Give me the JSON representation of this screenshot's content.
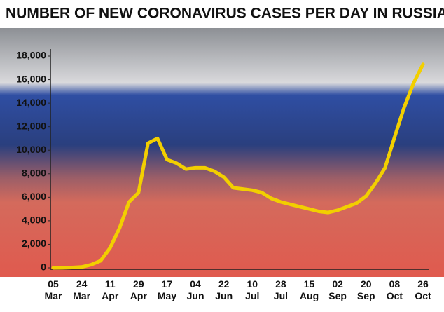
{
  "chart_data": {
    "type": "line",
    "title": "NUMBER OF NEW CORONAVIRUS CASES PER DAY IN RUSSIA",
    "categories": [
      "05 Mar",
      null,
      null,
      "24 Mar",
      null,
      null,
      "11 Apr",
      null,
      null,
      "29 Apr",
      null,
      null,
      "17 May",
      null,
      null,
      "04 Jun",
      null,
      null,
      "22 Jun",
      null,
      null,
      "10 Jul",
      null,
      null,
      "28 Jul",
      null,
      null,
      "15 Aug",
      null,
      null,
      "02 Sep",
      null,
      null,
      "20 Sep",
      null,
      null,
      "08 Oct",
      null,
      null,
      "26 Oct"
    ],
    "values": [
      0,
      5,
      30,
      70,
      270,
      600,
      1700,
      3400,
      5600,
      6400,
      10600,
      11000,
      9200,
      8900,
      8400,
      8500,
      8500,
      8200,
      7700,
      6800,
      6700,
      6600,
      6400,
      5900,
      5600,
      5400,
      5200,
      5000,
      4800,
      4700,
      4900,
      5200,
      5500,
      6100,
      7200,
      8500,
      11100,
      13600,
      15700,
      17300
    ],
    "color": "#f2cf00",
    "ylim": [
      0,
      18000
    ],
    "yticks": [
      {
        "value": 0,
        "label": "0"
      },
      {
        "value": 2000,
        "label": "2,000"
      },
      {
        "value": 4000,
        "label": "4,000"
      },
      {
        "value": 6000,
        "label": "6,000"
      },
      {
        "value": 8000,
        "label": "8,000"
      },
      {
        "value": 10000,
        "label": "10,000"
      },
      {
        "value": 12000,
        "label": "12,000"
      },
      {
        "value": 14000,
        "label": "14,000"
      },
      {
        "value": 16000,
        "label": "16,000"
      },
      {
        "value": 18000,
        "label": "18,000"
      }
    ],
    "grid": false
  }
}
